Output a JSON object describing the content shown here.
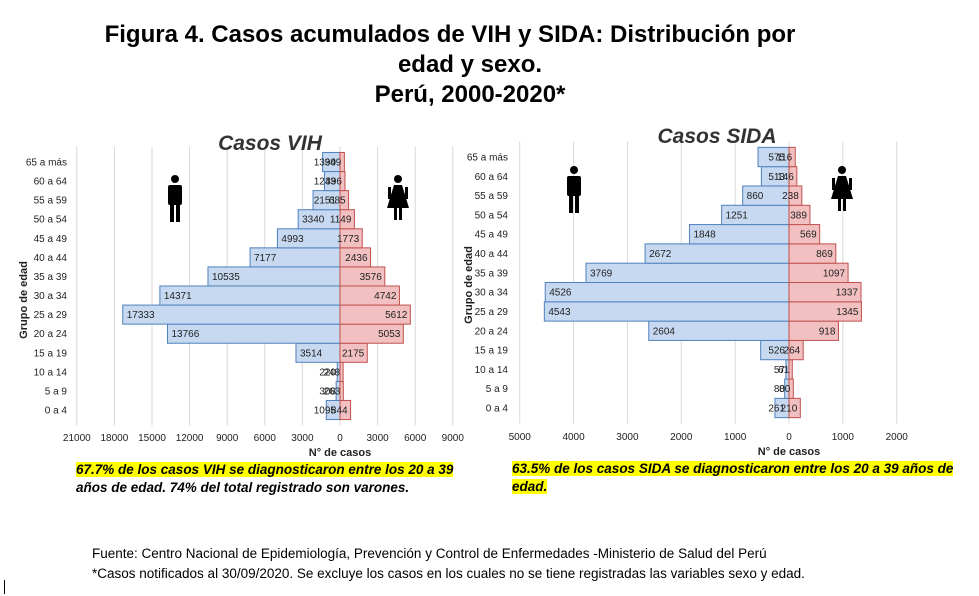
{
  "title": {
    "line1": "Figura 4. Casos acumulados de VIH y SIDA: Distribución por",
    "line2": "edad y sexo.",
    "line3": "Perú, 2000-2020*"
  },
  "notes": {
    "vih_hl": "67.7% de los casos VIH se diagnosticaron entre los 20 a 39",
    "vih_rest": "años de edad. 74% del total registrado son varones.",
    "sida_hl": "63.5% de los casos SIDA se diagnosticaron entre los 20 a 39 años de edad."
  },
  "source": {
    "line1": "Fuente: Centro Nacional de Epidemiología, Prevención y Control de Enfermedades -Ministerio de Salud del Perú",
    "line2": "*Casos notificados al 30/09/2020. Se excluye los casos en los cuales no se tiene registradas las variables sexo y edad."
  },
  "colors": {
    "male_fill": "#c6d9f0",
    "male_stroke": "#4f81bd",
    "female_fill": "#f2c0c0",
    "female_stroke": "#c0504d"
  },
  "icons": [
    "male-person-icon",
    "female-person-icon"
  ],
  "chart_data": [
    {
      "type": "bar",
      "orientation": "horizontal-pyramid",
      "title": "Casos VIH",
      "ylabel": "Grupo de edad",
      "xlabel": "N° de casos",
      "categories": [
        "0 a 4",
        "5 a 9",
        "10 a 14",
        "15 a 19",
        "20 a 24",
        "25 a 29",
        "30 a 34",
        "35 a 39",
        "40 a 44",
        "45 a 49",
        "50 a 54",
        "55 a 59",
        "60 a 64",
        "65 a más"
      ],
      "series": [
        {
          "values": [
            1095,
            308,
            220,
            3514,
            13766,
            17333,
            14371,
            10535,
            7177,
            4993,
            3340,
            2151,
            1243,
            1390
          ]
        },
        {
          "values": [
            844,
            263,
            248,
            2175,
            5053,
            5612,
            4742,
            3576,
            2436,
            1773,
            1149,
            685,
            396,
            349
          ]
        }
      ],
      "xticks": [
        "21000",
        "18000",
        "15000",
        "12000",
        "9000",
        "6000",
        "3000",
        "0",
        "3000",
        "6000",
        "9000"
      ],
      "xlim": [
        -21000,
        9000
      ],
      "grid": true
    },
    {
      "type": "bar",
      "orientation": "horizontal-pyramid",
      "title": "Casos SIDA",
      "ylabel": "Grupo de edad",
      "xlabel": "N° de casos",
      "categories": [
        "0 a 4",
        "5 a 9",
        "10 a 14",
        "15 a 19",
        "20 a 24",
        "25 a 29",
        "30 a 34",
        "35 a 39",
        "40 a 44",
        "45 a 49",
        "50 a 54",
        "55 a 59",
        "60 a 64",
        "65 a más"
      ],
      "series": [
        {
          "values": [
            261,
            80,
            57,
            526,
            2604,
            4543,
            4526,
            3769,
            2672,
            1848,
            1251,
            860,
            513,
            575
          ]
        },
        {
          "values": [
            210,
            80,
            61,
            264,
            918,
            1345,
            1337,
            1097,
            869,
            569,
            389,
            238,
            146,
            116
          ]
        }
      ],
      "xticks": [
        "5000",
        "4000",
        "3000",
        "2000",
        "1000",
        "0",
        "1000",
        "2000"
      ],
      "xlim": [
        -5000,
        2000
      ],
      "grid": true
    }
  ]
}
